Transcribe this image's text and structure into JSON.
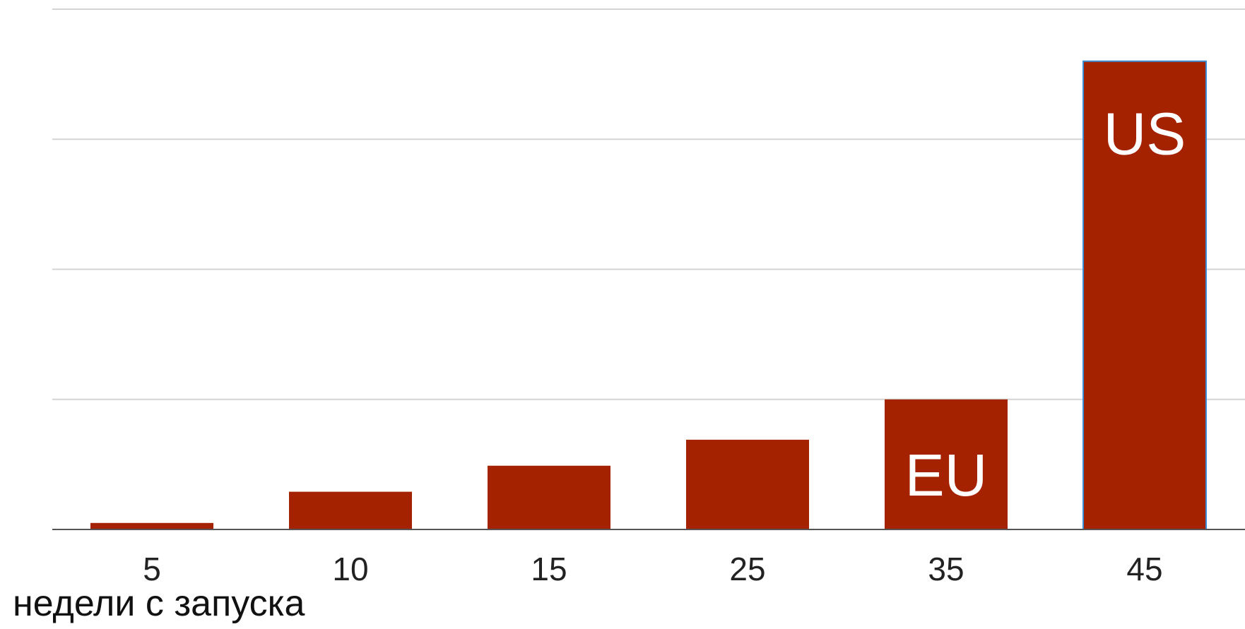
{
  "chart_data": {
    "type": "bar",
    "categories": [
      "5",
      "10",
      "15",
      "25",
      "35",
      "45"
    ],
    "values": [
      0.5,
      2.9,
      4.9,
      6.9,
      10,
      36
    ],
    "bar_labels": [
      "",
      "",
      "",
      "",
      "EU",
      "US"
    ],
    "xlabel": "недели с запуска",
    "ylabel": "",
    "ylim": [
      0,
      40
    ],
    "gridlines": [
      10,
      20,
      30,
      40
    ],
    "y_tick_labels_shown": false,
    "grid": true,
    "legend": "none",
    "colors": {
      "bar": "#a52200",
      "grid": "#d4d4d4",
      "axis": "#555555",
      "bar_label": "#ffffff",
      "tick_label": "#222222",
      "highlight_outline": "#3b8fd6"
    },
    "highlighted_category": "45"
  }
}
